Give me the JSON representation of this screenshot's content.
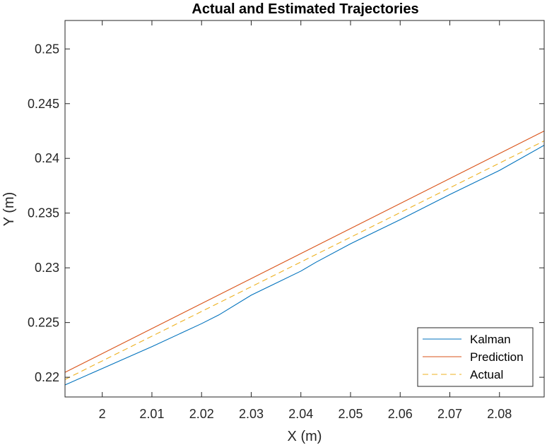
{
  "chart_data": {
    "type": "line",
    "title": "Actual and Estimated Trajectories",
    "xlabel": "X (m)",
    "ylabel": "Y (m)",
    "xlim": [
      1.9925,
      2.089
    ],
    "ylim": [
      0.2182,
      0.2526
    ],
    "xticks": [
      2,
      2.01,
      2.02,
      2.03,
      2.04,
      2.05,
      2.06,
      2.07,
      2.08
    ],
    "xtick_labels": [
      "2",
      "2.01",
      "2.02",
      "2.03",
      "2.04",
      "2.05",
      "2.06",
      "2.07",
      "2.08"
    ],
    "yticks": [
      0.22,
      0.225,
      0.23,
      0.235,
      0.24,
      0.245,
      0.25
    ],
    "ytick_labels": [
      "0.22",
      "0.225",
      "0.23",
      "0.235",
      "0.24",
      "0.245",
      "0.25"
    ],
    "grid": false,
    "legend_position": "bottom-right",
    "series": [
      {
        "name": "Kalman",
        "color": "#0072BD",
        "style": "solid",
        "x": [
          1.9925,
          2.0,
          2.01,
          2.02,
          2.0235,
          2.03,
          2.04,
          2.043,
          2.05,
          2.06,
          2.07,
          2.08,
          2.089
        ],
        "y": [
          0.2193,
          0.2208,
          0.2228,
          0.2249,
          0.2257,
          0.2275,
          0.2297,
          0.2305,
          0.2322,
          0.2344,
          0.2367,
          0.2389,
          0.2412
        ]
      },
      {
        "name": "Prediction",
        "color": "#D95319",
        "style": "solid",
        "x": [
          1.9925,
          2.089
        ],
        "y": [
          0.22045,
          0.2425
        ]
      },
      {
        "name": "Actual",
        "color": "#EDB120",
        "style": "dashed",
        "x": [
          1.9925,
          2.089
        ],
        "y": [
          0.2198,
          0.2416
        ]
      }
    ]
  }
}
